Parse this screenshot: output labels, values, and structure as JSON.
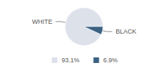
{
  "chart_data": {
    "type": "pie",
    "categories": [
      "WHITE",
      "BLACK"
    ],
    "values": [
      93.1,
      6.9
    ],
    "value_labels": [
      "93.1%",
      "6.9%"
    ],
    "colors": [
      "#dde2ea",
      "#3b6183"
    ],
    "legend": "bottom"
  }
}
